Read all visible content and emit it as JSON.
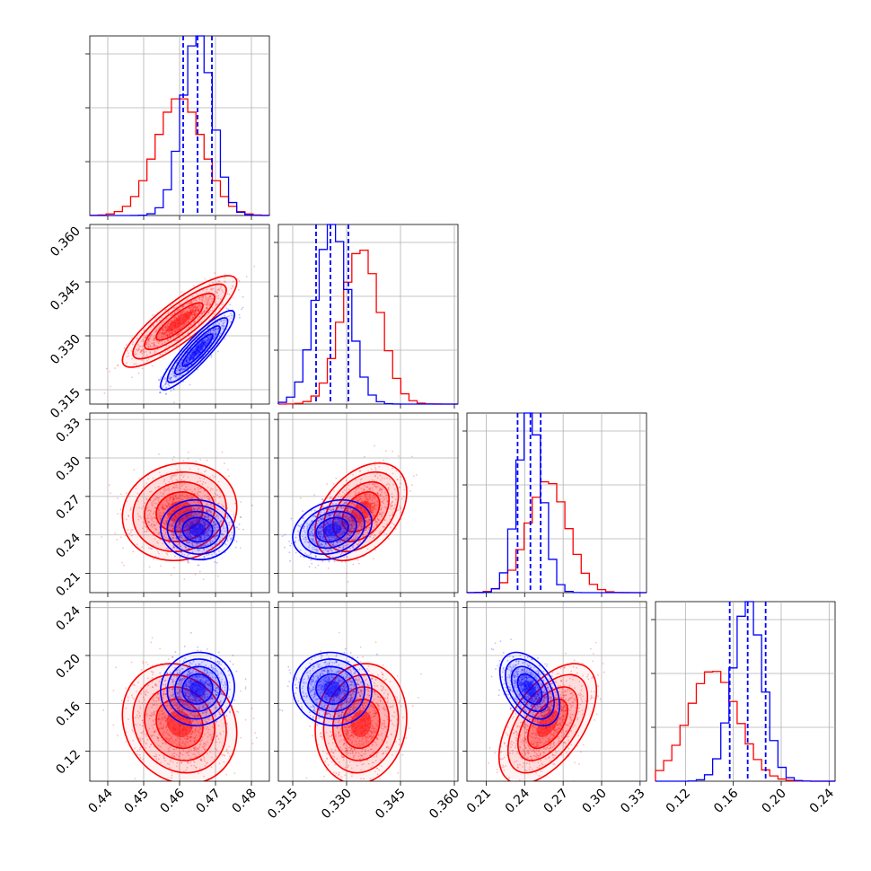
{
  "chart_data": {
    "type": "corner",
    "parameters": 4,
    "grid": true,
    "colors": {
      "series_a": "#ff0000",
      "series_b": "#0000ff",
      "quantile_lines": "#0000ff"
    },
    "axis_ranges": [
      [
        0.435,
        0.485
      ],
      [
        0.311,
        0.361
      ],
      [
        0.195,
        0.335
      ],
      [
        0.095,
        0.245
      ]
    ],
    "ticks": [
      [
        "0.44",
        "0.45",
        "0.46",
        "0.47",
        "0.48"
      ],
      [
        "0.315",
        "0.330",
        "0.345",
        "0.360"
      ],
      [
        "0.21",
        "0.24",
        "0.27",
        "0.30",
        "0.33"
      ],
      [
        "0.12",
        "0.16",
        "0.20",
        "0.24"
      ]
    ],
    "tick_values": [
      [
        0.44,
        0.45,
        0.46,
        0.47,
        0.48
      ],
      [
        0.315,
        0.33,
        0.345,
        0.36
      ],
      [
        0.21,
        0.24,
        0.27,
        0.3,
        0.33
      ],
      [
        0.12,
        0.16,
        0.2,
        0.24
      ]
    ],
    "series": [
      {
        "mean": [
          0.46,
          0.334,
          0.258,
          0.143
        ],
        "sd": [
          0.0065,
          0.0052,
          0.0155,
          0.0205
        ]
      },
      {
        "mean": [
          0.465,
          0.326,
          0.244,
          0.172
        ],
        "sd": [
          0.0042,
          0.0045,
          0.0095,
          0.0125
        ]
      }
    ],
    "correlations": {
      "series_a": {
        "0-1": 0.85,
        "0-2": 0.1,
        "0-3": -0.15,
        "1-2": 0.4,
        "1-3": 0.1,
        "2-3": 0.55
      },
      "series_b": {
        "0-1": 0.9,
        "0-2": -0.05,
        "0-3": 0.05,
        "1-2": 0.25,
        "1-3": -0.05,
        "2-3": -0.45
      }
    },
    "quantiles_series_b": [
      [
        0.461,
        0.465,
        0.469
      ],
      [
        0.3215,
        0.3255,
        0.3305
      ],
      [
        0.2345,
        0.2445,
        0.2525
      ],
      [
        0.157,
        0.172,
        0.187
      ]
    ]
  }
}
